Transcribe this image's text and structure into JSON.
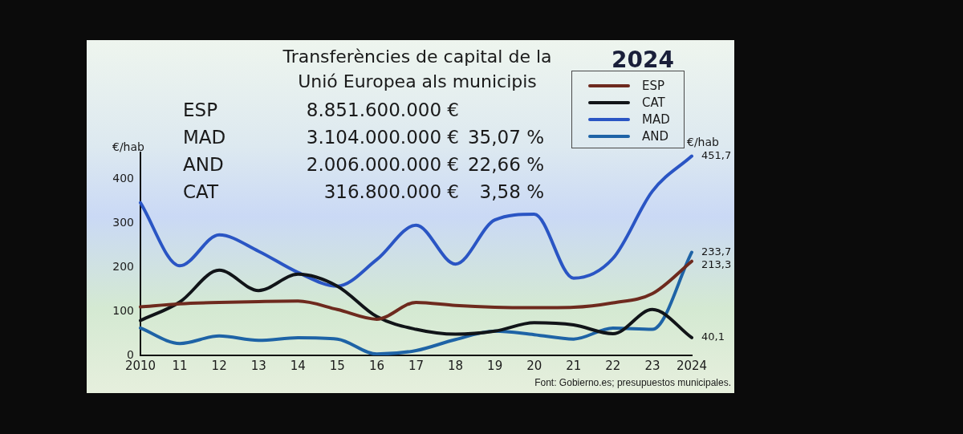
{
  "chart_data": {
    "type": "line",
    "title": "Transferències de capital de la Unió Europea als municipis",
    "subtitle": "2024",
    "ylabel": "€/hab",
    "annotations": [
      "ESP 8.851.600.000 €",
      "MAD 3.104.000.000 € 35,07 %",
      "AND 2.006.000.000 € 22,66 %",
      "CAT 316.800.000 € 3,58 %",
      "€/hab",
      "Font: Gobierno.es; presupuestos municipales."
    ],
    "categories": [
      "2010",
      "11",
      "12",
      "13",
      "14",
      "15",
      "16",
      "17",
      "18",
      "19",
      "20",
      "21",
      "22",
      "23",
      "2024"
    ],
    "series": [
      {
        "name": "ESP",
        "color": "#6e2a1e",
        "values": [
          110,
          117,
          120,
          122,
          123,
          104,
          82,
          120,
          113,
          109,
          108,
          109,
          119,
          140,
          213.3
        ],
        "value_labels": [
          null,
          null,
          null,
          null,
          null,
          null,
          null,
          null,
          null,
          null,
          null,
          null,
          null,
          null,
          "213,3"
        ]
      },
      {
        "name": "CAT",
        "color": "#111418",
        "values": [
          79,
          121,
          193,
          147,
          184,
          157,
          88,
          59,
          48,
          55,
          74,
          69,
          49,
          104,
          40.1
        ],
        "value_labels": [
          null,
          null,
          null,
          null,
          null,
          null,
          null,
          null,
          null,
          null,
          null,
          null,
          null,
          null,
          "40,1"
        ]
      },
      {
        "name": "MAD",
        "color": "#2a55c4",
        "values": [
          346,
          203,
          273,
          236,
          188,
          157,
          217,
          295,
          207,
          307,
          320,
          175,
          220,
          372,
          451.7
        ],
        "value_labels": [
          null,
          null,
          null,
          null,
          null,
          null,
          null,
          null,
          null,
          null,
          null,
          null,
          null,
          null,
          "451,7"
        ]
      },
      {
        "name": "AND",
        "color": "#1e63a6",
        "values": [
          62,
          27,
          44,
          34,
          40,
          37,
          3,
          11,
          36,
          55,
          47,
          37,
          62,
          59,
          233.7
        ],
        "value_labels": [
          null,
          null,
          null,
          null,
          null,
          null,
          null,
          null,
          null,
          null,
          null,
          null,
          null,
          null,
          "233,7"
        ]
      }
    ],
    "ylim": [
      0,
      460
    ],
    "yticks": [
      0,
      100,
      200,
      300,
      400
    ],
    "grid": false,
    "legend": "top right",
    "marker": "none",
    "line_style": "solid"
  }
}
